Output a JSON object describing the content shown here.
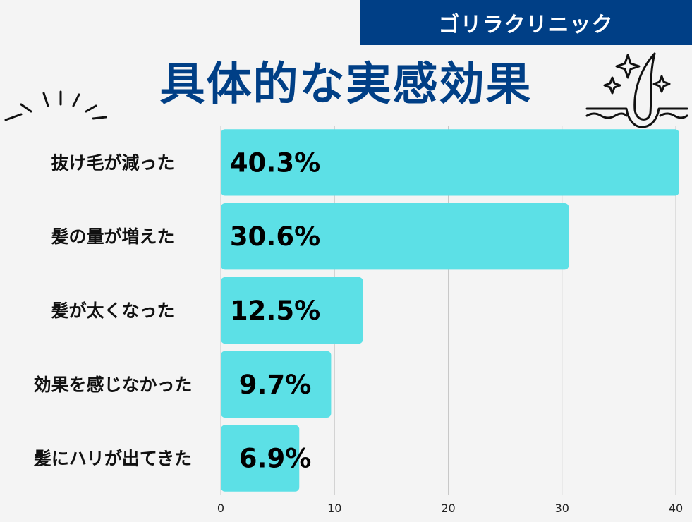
{
  "banner": {
    "label": "ゴリラクリニック"
  },
  "colors": {
    "bar": "#5ce0e6",
    "banner": "#003f86",
    "title": "#003f86",
    "grid": "#c8c8c8"
  },
  "icons": [
    "burst-lines-icon",
    "hair-follicle-sparkle-icon"
  ],
  "chart_data": {
    "type": "bar",
    "orientation": "horizontal",
    "title": "具体的な実感効果",
    "categories": [
      "抜け毛が減った",
      "髪の量が増えた",
      "髪が太くなった",
      "効果を感じなかった",
      "髪にハリが出てきた"
    ],
    "values": [
      40.3,
      30.6,
      12.5,
      9.7,
      6.9
    ],
    "value_labels": [
      "40.3%",
      "30.6%",
      "12.5%",
      "9.7%",
      "6.9%"
    ],
    "xlim": [
      0,
      40
    ],
    "xticks": [
      0,
      10,
      20,
      30,
      40
    ],
    "xlabel": "",
    "ylabel": "",
    "grid": true,
    "legend": "none"
  }
}
